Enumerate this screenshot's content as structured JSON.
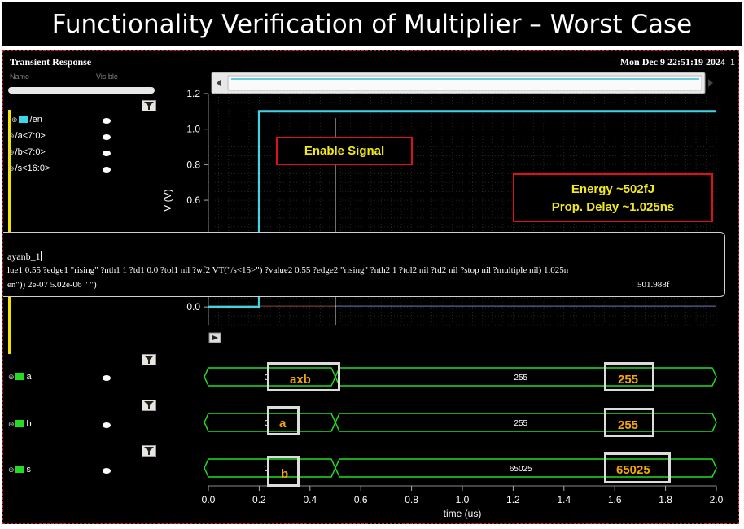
{
  "slide_title": "Functionality Verification of Multiplier – Worst Case",
  "window": {
    "title": "Transient Response",
    "datetime": "Mon Dec 9 22:51:19 2024",
    "corner": "1"
  },
  "browser": {
    "col_name": "Name",
    "col_value": "Vis ble"
  },
  "signals_top": [
    {
      "label": "/en",
      "color": "#3ed6e6"
    },
    {
      "label": "/a<7:0>"
    },
    {
      "label": "/b<7:0>"
    },
    {
      "label": "/s<16:0>"
    }
  ],
  "signals_bottom": [
    {
      "label": "a",
      "color": "#22dd22"
    },
    {
      "label": "b",
      "color": "#22dd22"
    },
    {
      "label": "s",
      "color": "#22dd22"
    }
  ],
  "colors": {
    "trace_en": "#3ed6e6",
    "bus": "#22dd22",
    "annot_border": "#e0101a",
    "annot_text": "#f2ea18",
    "box_text": "#f5a800"
  },
  "annotations": {
    "enable": "Enable Signal",
    "energy": "Energy ~502fJ",
    "delay": "Prop. Delay ~1.025ns"
  },
  "calculator": {
    "line1": "ayanb_1",
    "line2": "lue1 0.55 ?edge1 \"rising\" ?nth1 1 ?td1 0.0 ?tol1 nil ?wf2 VT(\"/s<15>\") ?value2 0.55 ?edge2 \"rising\" ?nth2 1 ?tol2 nil ?td2 nil ?stop nil ?multiple nil) 1.025n",
    "line3": "en\")) 2e-07 5.02e-06 \" \")",
    "result": "501.988f"
  },
  "bus_rows": [
    {
      "initial": "0",
      "mid_value": "255",
      "box_left": "axb",
      "box_right": "255"
    },
    {
      "initial": "0",
      "mid_value": "255",
      "box_left": "a",
      "box_right": "255"
    },
    {
      "initial": "0",
      "mid_value": "65025",
      "box_left": "b",
      "box_right": "65025"
    }
  ],
  "chart_data": {
    "type": "line",
    "ylabel": "V (V)",
    "xlabel": "time (us)",
    "xlim": [
      0.0,
      2.0
    ],
    "ylim": [
      -0.1,
      1.2
    ],
    "x_ticks": [
      "0.0",
      "0.2",
      "0.4",
      "0.6",
      "0.8",
      "1.0",
      "1.2",
      "1.4",
      "1.6",
      "1.8",
      "2.0"
    ],
    "y_ticks": [
      "1.2",
      "1.0",
      "0.8",
      "0.6",
      "0.4",
      "0.2",
      "0.0"
    ],
    "series": [
      {
        "name": "/en",
        "x": [
          0.0,
          0.2,
          0.2,
          2.0
        ],
        "y": [
          0.0,
          0.0,
          1.1,
          1.1
        ]
      }
    ],
    "grid": true,
    "cursor_x": 0.5
  }
}
